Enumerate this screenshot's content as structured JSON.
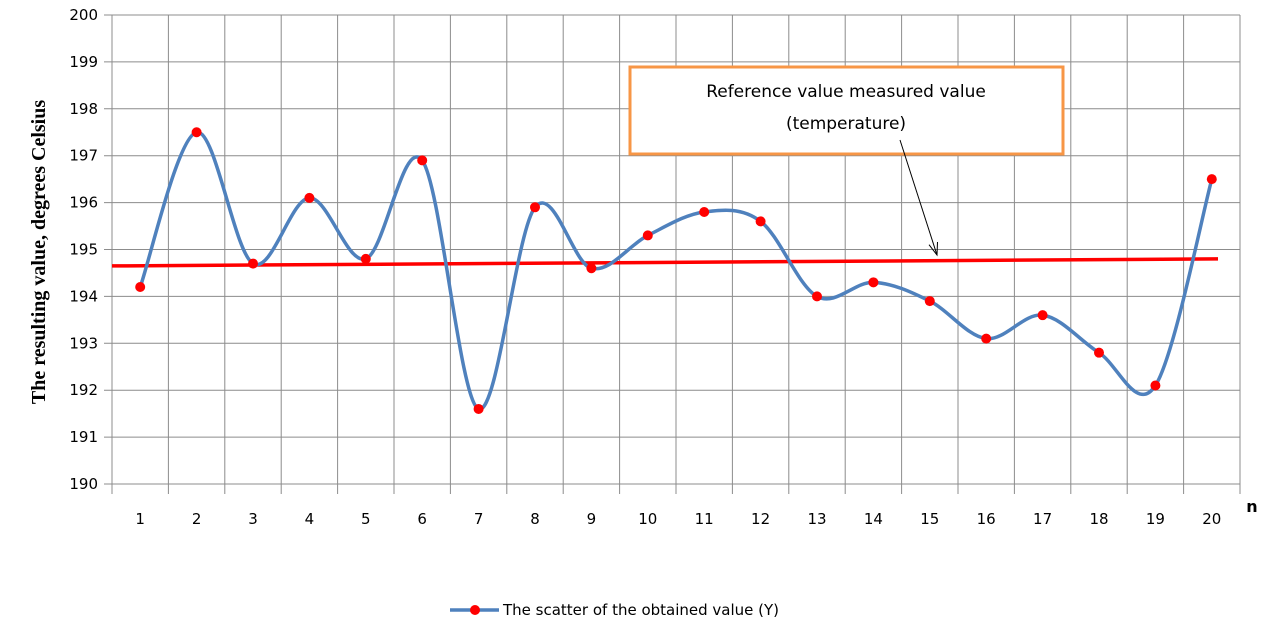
{
  "chart_data": {
    "type": "line",
    "title": "",
    "ylabel": "The resulting value, degrees Celsius",
    "xlabel": "n",
    "categories": [
      "1",
      "2",
      "3",
      "4",
      "5",
      "6",
      "7",
      "8",
      "9",
      "10",
      "11",
      "12",
      "13",
      "14",
      "15",
      "16",
      "17",
      "18",
      "19",
      "20"
    ],
    "ylim": [
      190,
      200
    ],
    "yticks": [
      190,
      191,
      192,
      193,
      194,
      195,
      196,
      197,
      198,
      199,
      200
    ],
    "grid": true,
    "series": [
      {
        "name": "The scatter of the obtained value (Y)",
        "values": [
          194.2,
          197.5,
          194.7,
          196.1,
          194.8,
          196.9,
          191.6,
          195.9,
          194.6,
          195.3,
          195.8,
          195.6,
          194.0,
          194.3,
          193.9,
          193.1,
          193.6,
          192.8,
          192.1,
          196.5
        ],
        "line_color": "#4F81BD",
        "marker_color": "#FF0000",
        "smooth": true
      }
    ],
    "reference_line": {
      "start_value": 194.65,
      "end_value": 194.8,
      "color": "#FF0000"
    },
    "annotation": {
      "line1": "Reference value measured value",
      "line2": "(temperature)",
      "border_color": "#F79646",
      "arrow_target_category": 15
    },
    "legend": {
      "position": "bottom",
      "label": "The scatter of the obtained value (Y)"
    }
  }
}
